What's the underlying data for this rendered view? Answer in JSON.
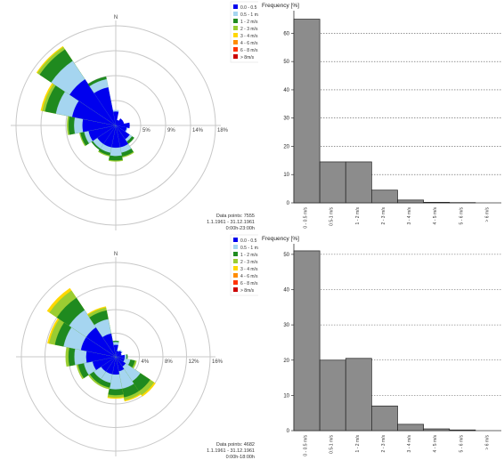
{
  "chart_data": [
    {
      "type": "wind-rose",
      "north_label": "N",
      "ring_labels": [
        "5%",
        "9%",
        "14%",
        "18%"
      ],
      "ring_values": [
        4.5,
        9,
        13.5,
        18
      ],
      "legend": [
        "0.0 - 0.5 m/s",
        "0.5 - 1 m/s",
        "1 - 2 m/s",
        "2 - 3 m/s",
        "3 - 4 m/s",
        "4 - 6 m/s",
        "6 - 8 m/s",
        "> 8m/s"
      ],
      "colors": [
        "#0000ee",
        "#a5d5f0",
        "#1f8a1f",
        "#9acd32",
        "#ffd700",
        "#ff8c00",
        "#ff3300",
        "#cc0000"
      ],
      "stats": [
        "Data points: 7555",
        "1.1.1961 - 31.12.1961",
        "0:00h-23:00h"
      ],
      "directions_deg": [
        0,
        22.5,
        45,
        67.5,
        90,
        112.5,
        135,
        157.5,
        180,
        202.5,
        225,
        247.5,
        270,
        292.5,
        315,
        337.5
      ],
      "series": [
        {
          "name": "0.0 - 0.5 m/s",
          "values": [
            2.5,
            1,
            1.5,
            1.5,
            2.5,
            2,
            3,
            4,
            4,
            4,
            4,
            5,
            6,
            8,
            10,
            7
          ]
        },
        {
          "name": "0.5 - 1 m/s",
          "values": [
            0.3,
            0,
            0,
            0,
            0,
            0.2,
            0.5,
            1,
            1.5,
            1,
            1,
            0.8,
            1.5,
            3,
            4,
            1.5
          ]
        },
        {
          "name": "1 - 2 m/s",
          "values": [
            0,
            0,
            0,
            0,
            0,
            0,
            0.5,
            0.7,
            0.8,
            0.5,
            0.3,
            0.7,
            1,
            2,
            2.5,
            0.5
          ]
        },
        {
          "name": "2 - 3 m/s",
          "values": [
            0,
            0,
            0,
            0,
            0,
            0,
            0,
            0.2,
            0.2,
            0.2,
            0,
            0.2,
            0.3,
            0.5,
            0.5,
            0
          ]
        },
        {
          "name": "3 - 4 m/s",
          "values": [
            0,
            0,
            0,
            0,
            0,
            0,
            0,
            0,
            0,
            0,
            0,
            0,
            0,
            0.3,
            0.2,
            0
          ]
        }
      ]
    },
    {
      "type": "bar",
      "ylabel": "Frequency [%]",
      "categories": [
        "0 - 0.5 m/s",
        "0.5-1 m/s",
        "1 - 2 m/s",
        "2 - 3 m/s",
        "3 - 4 m/s",
        "4 - 5 m/s",
        "5 - 6 m/s",
        "> 6 m/s"
      ],
      "values": [
        65,
        14.5,
        14.5,
        4.5,
        1,
        0.2,
        0.1,
        0
      ],
      "ylim": [
        0,
        68
      ],
      "yticks": [
        0,
        10,
        20,
        30,
        40,
        50,
        60
      ],
      "grid": true
    },
    {
      "type": "wind-rose",
      "north_label": "N",
      "ring_labels": [
        "4%",
        "8%",
        "12%",
        "16%"
      ],
      "ring_values": [
        4,
        8,
        12,
        16
      ],
      "legend": [
        "0.0 - 0.5 m/s",
        "0.5 - 1 m/s",
        "1 - 2 m/s",
        "2 - 3 m/s",
        "3 - 4 m/s",
        "4 - 6 m/s",
        "6 - 8 m/s",
        "> 8m/s"
      ],
      "colors": [
        "#0000ee",
        "#a5d5f0",
        "#1f8a1f",
        "#9acd32",
        "#ffd700",
        "#ff8c00",
        "#ff3300",
        "#cc0000"
      ],
      "stats": [
        "Data points: 4682",
        "1.1.1961 - 31.12.1961",
        "0:00h-18:00h"
      ],
      "directions_deg": [
        0,
        22.5,
        45,
        67.5,
        90,
        112.5,
        135,
        157.5,
        180,
        202.5,
        225,
        247.5,
        270,
        292.5,
        315,
        337.5
      ],
      "series": [
        {
          "name": "0.0 - 0.5 m/s",
          "values": [
            2,
            1,
            1.2,
            1,
            1.5,
            1.5,
            2,
            2.5,
            3,
            3,
            3,
            4,
            5,
            6,
            6,
            4
          ]
        },
        {
          "name": "0.5 - 1 m/s",
          "values": [
            0.5,
            0.2,
            0.2,
            0,
            0.3,
            1,
            3,
            3,
            2.5,
            1.5,
            1.5,
            1.5,
            2,
            3,
            3.5,
            2.5
          ]
        },
        {
          "name": "1 - 2 m/s",
          "values": [
            0.2,
            0,
            0,
            0,
            0.2,
            0.8,
            2,
            1.5,
            1,
            0.8,
            0.8,
            1,
            1,
            1.5,
            2.5,
            1.5
          ]
        },
        {
          "name": "2 - 3 m/s",
          "values": [
            0,
            0,
            0,
            0,
            0,
            0.3,
            0.8,
            0.5,
            0.4,
            0.3,
            0.3,
            0.3,
            0.5,
            1,
            1.5,
            0.5
          ]
        },
        {
          "name": "3 - 4 m/s",
          "values": [
            0,
            0,
            0,
            0,
            0,
            0,
            0.3,
            0.2,
            0.2,
            0,
            0,
            0,
            0,
            0.3,
            0.5,
            0.2
          ]
        }
      ]
    },
    {
      "type": "bar",
      "ylabel": "Frequency [%]",
      "categories": [
        "0 - 0.5 m/s",
        "0.5-1 m/s",
        "1 - 2 m/s",
        "2 - 3 m/s",
        "3 - 4 m/s",
        "4 - 5 m/s",
        "5 - 6 m/s",
        "> 6 m/s"
      ],
      "values": [
        51,
        20,
        20.5,
        7,
        1.8,
        0.5,
        0.2,
        0
      ],
      "ylim": [
        0,
        53
      ],
      "yticks": [
        0,
        10,
        20,
        30,
        40,
        50
      ],
      "grid": true
    }
  ]
}
